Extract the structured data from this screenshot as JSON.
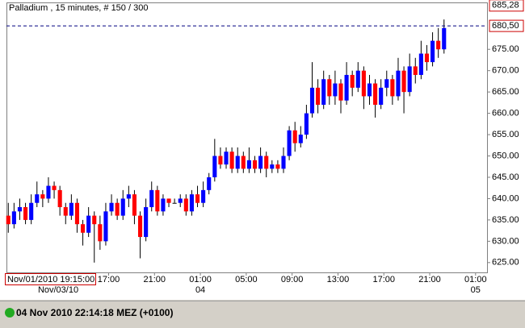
{
  "chart_data": {
    "type": "candlestick",
    "title": "Palladium , 15 minutes, # 150 / 300",
    "up_color": "#0000ff",
    "down_color": "#ff0000",
    "wick_color": "#000000",
    "ylim": [
      622.7,
      686.0
    ],
    "yticks": [
      {
        "value": 625,
        "label": "625.00"
      },
      {
        "value": 630,
        "label": "630.00"
      },
      {
        "value": 635,
        "label": "635.00"
      },
      {
        "value": 640,
        "label": "640.00"
      },
      {
        "value": 645,
        "label": "645.00"
      },
      {
        "value": 650,
        "label": "650.00"
      },
      {
        "value": 655,
        "label": "655.00"
      },
      {
        "value": 660,
        "label": "660.00"
      },
      {
        "value": 665,
        "label": "665.00"
      },
      {
        "value": 670,
        "label": "670.00"
      },
      {
        "value": 675,
        "label": "675.00"
      }
    ],
    "xlim": [
      8.09,
      50
    ],
    "xticks": [
      {
        "value": 17,
        "label": "17:00"
      },
      {
        "value": 21,
        "label": "21:00"
      },
      {
        "value": 25,
        "label": "01:00"
      },
      {
        "value": 29,
        "label": "05:00"
      },
      {
        "value": 33,
        "label": "09:00"
      },
      {
        "value": 37,
        "label": "13:00"
      },
      {
        "value": 41,
        "label": "17:00"
      },
      {
        "value": 45,
        "label": "21:00"
      },
      {
        "value": 49,
        "label": "01:00"
      }
    ],
    "date_ticks": [
      {
        "value": 12.6,
        "label": "Nov/03/10"
      },
      {
        "value": 25,
        "label": "04"
      },
      {
        "value": 49,
        "label": "05"
      }
    ],
    "top_price": {
      "value": 685.28,
      "label": "685,28"
    },
    "ref_line": {
      "value": 680.5,
      "label": "680,50",
      "color": "#000080"
    },
    "cursor_label": "Nov/01/2010 19:15:00",
    "x": [
      8.25,
      8.75,
      9.25,
      9.75,
      10.25,
      10.75,
      11.25,
      11.75,
      12.25,
      12.75,
      13.25,
      13.75,
      14.25,
      14.75,
      15.25,
      15.75,
      16.25,
      16.75,
      17.25,
      17.75,
      18.25,
      18.75,
      19.25,
      19.75,
      20.25,
      20.75,
      21.25,
      21.75,
      22.25,
      22.75,
      23.25,
      23.75,
      24.25,
      24.75,
      25.25,
      25.75,
      26.25,
      26.75,
      27.25,
      27.75,
      28.25,
      28.75,
      29.25,
      29.75,
      30.25,
      30.75,
      31.25,
      31.75,
      32.25,
      32.75,
      33.25,
      33.75,
      34.25,
      34.75,
      35.25,
      35.75,
      36.25,
      36.75,
      37.25,
      37.75,
      38.25,
      38.75,
      39.25,
      39.75,
      40.25,
      40.75,
      41.25,
      41.75,
      42.25,
      42.75,
      43.25,
      43.75,
      44.25,
      44.75,
      45.25,
      45.75,
      46.25
    ],
    "open": [
      636,
      634,
      637,
      638,
      635,
      639,
      641,
      640,
      643,
      642,
      638,
      636,
      639,
      634,
      632,
      636,
      634,
      630,
      637,
      639,
      636,
      640,
      641,
      636,
      631,
      638,
      642,
      637,
      640,
      639,
      639,
      640,
      637,
      641,
      639,
      642,
      645,
      650,
      648,
      651,
      647,
      650,
      647,
      649,
      647,
      650,
      647,
      648,
      647,
      650,
      656,
      653,
      655,
      660,
      666,
      662,
      668,
      664,
      667,
      663,
      669,
      666,
      670,
      664,
      667,
      662,
      666,
      668,
      664,
      670,
      665,
      671,
      669,
      674,
      672,
      677,
      675
    ],
    "high": [
      639,
      639,
      640,
      639,
      641,
      644,
      642,
      645,
      644,
      643,
      639,
      641,
      640,
      635,
      638,
      637,
      636,
      639,
      641,
      640,
      642,
      643,
      642,
      637,
      640,
      644,
      643,
      641,
      640,
      640,
      641,
      641,
      642,
      643,
      644,
      646,
      654,
      652,
      652,
      652,
      652,
      651,
      652,
      650,
      652,
      651,
      649,
      649,
      652,
      657,
      658,
      657,
      662,
      672,
      668,
      670,
      669,
      670,
      668,
      672,
      670,
      672,
      671,
      669,
      668,
      668,
      670,
      669,
      673,
      671,
      674,
      673,
      677,
      676,
      679,
      680,
      682
    ],
    "low": [
      632,
      633,
      635,
      634,
      634,
      638,
      638,
      639,
      640,
      636,
      634,
      635,
      632,
      629,
      631,
      625,
      628,
      629,
      636,
      635,
      635,
      638,
      634,
      626,
      630,
      637,
      636,
      636,
      638,
      639,
      638,
      636,
      636,
      638,
      638,
      641,
      644,
      647,
      647,
      646,
      646,
      646,
      646,
      646,
      646,
      645,
      646,
      646,
      646,
      649,
      651,
      652,
      654,
      659,
      660,
      661,
      662,
      662,
      660,
      662,
      664,
      665,
      661,
      662,
      659,
      661,
      664,
      662,
      663,
      660,
      664,
      667,
      668,
      670,
      671,
      673,
      674
    ],
    "close": [
      634,
      637,
      638,
      635,
      639,
      641,
      640,
      643,
      642,
      638,
      636,
      639,
      634,
      632,
      636,
      634,
      630,
      637,
      639,
      636,
      640,
      641,
      636,
      631,
      638,
      642,
      637,
      640,
      639,
      639,
      640,
      637,
      641,
      639,
      642,
      645,
      650,
      648,
      651,
      647,
      650,
      647,
      649,
      647,
      650,
      647,
      648,
      647,
      650,
      656,
      653,
      655,
      660,
      666,
      662,
      668,
      664,
      667,
      663,
      669,
      666,
      670,
      664,
      667,
      662,
      666,
      668,
      664,
      670,
      665,
      671,
      669,
      674,
      672,
      677,
      675,
      680
    ]
  },
  "status": "04 Nov 2010 22:14:18  MEZ (+0100)",
  "status_color": "#22aa22"
}
